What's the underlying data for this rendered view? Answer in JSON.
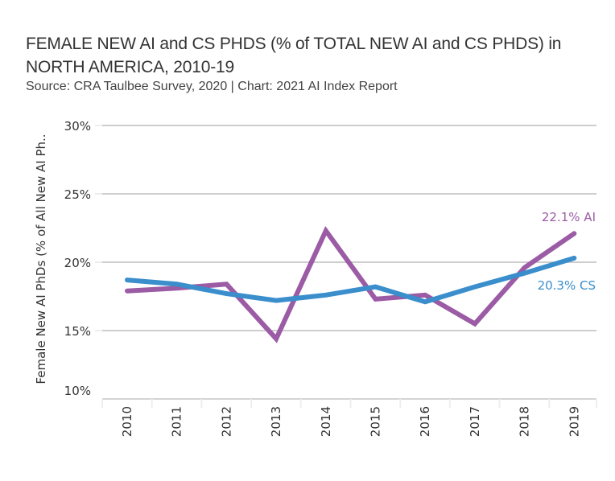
{
  "chart_data": {
    "type": "line",
    "title": "FEMALE NEW AI and CS PHDS (% of TOTAL NEW AI and CS PHDS) in NORTH AMERICA, 2010-19",
    "subtitle": "Source: CRA Taulbee Survey, 2020 | Chart: 2021 AI Index Report",
    "xlabel": "",
    "ylabel": "Female New AI PhDs (% of All New AI Ph..",
    "x": [
      "2010",
      "2011",
      "2012",
      "2013",
      "2014",
      "2015",
      "2016",
      "2017",
      "2018",
      "2019"
    ],
    "ylim": [
      10,
      30
    ],
    "yticks": [
      10,
      15,
      20,
      25,
      30
    ],
    "ytick_labels": [
      "10%",
      "15%",
      "20%",
      "25%",
      "30%"
    ],
    "grid": true,
    "series": [
      {
        "name": "AI",
        "color": "#9B5BA5",
        "values": [
          17.9,
          18.1,
          18.4,
          14.4,
          22.3,
          17.3,
          17.6,
          15.5,
          19.6,
          22.1
        ],
        "end_label": "22.1% AI"
      },
      {
        "name": "CS",
        "color": "#3A8ECC",
        "values": [
          18.7,
          18.4,
          17.7,
          17.2,
          17.6,
          18.2,
          17.1,
          18.2,
          19.2,
          20.3
        ],
        "end_label": "20.3% CS"
      }
    ]
  }
}
